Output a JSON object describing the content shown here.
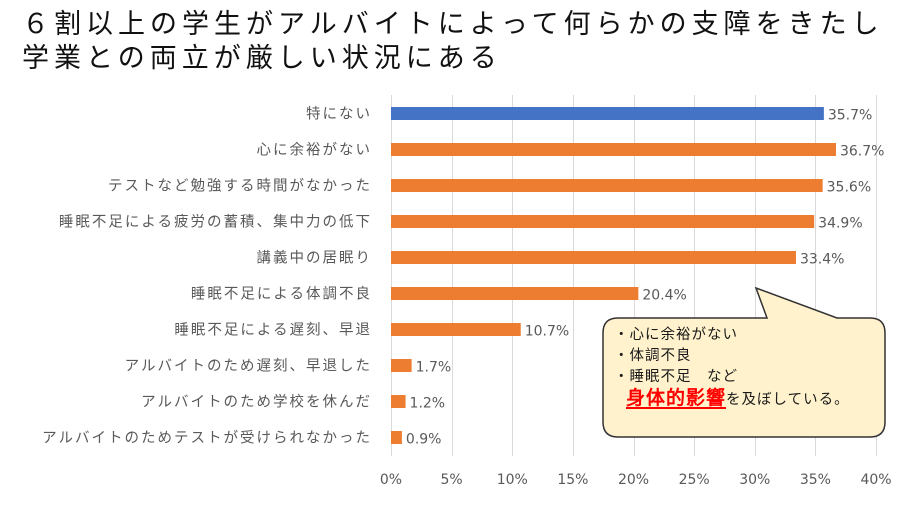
{
  "title": {
    "line1": "６割以上の学生がアルバイトによって何らかの支障をきたし",
    "line2": "学業との両立が厳しい状況にある"
  },
  "chart_data": {
    "type": "bar",
    "orientation": "horizontal",
    "title": "６割以上の学生がアルバイトによって何らかの支障をきたし学業との両立が厳しい状況にある",
    "xlabel": "",
    "ylabel": "",
    "xlim": [
      0,
      40
    ],
    "x_ticks": [
      0,
      5,
      10,
      15,
      20,
      25,
      30,
      35,
      40
    ],
    "x_tick_labels": [
      "0%",
      "5%",
      "10%",
      "15%",
      "20%",
      "25%",
      "30%",
      "35%",
      "40%"
    ],
    "grid": "vertical",
    "categories": [
      "特にない",
      "心に余裕がない",
      "テストなど勉強する時間がなかった",
      "睡眠不足による疲労の蓄積、集中力の低下",
      "講義中の居眠り",
      "睡眠不足による体調不良",
      "睡眠不足による遅刻、早退",
      "アルバイトのため遅刻、早退した",
      "アルバイトのため学校を休んだ",
      "アルバイトのためテストが受けられなかった"
    ],
    "values": [
      35.7,
      36.7,
      35.6,
      34.9,
      33.4,
      20.4,
      10.7,
      1.7,
      1.2,
      0.9
    ],
    "value_labels": [
      "35.7%",
      "36.7%",
      "35.6%",
      "34.9%",
      "33.4%",
      "20.4%",
      "10.7%",
      "1.7%",
      "1.2%",
      "0.9%"
    ],
    "bar_colors": [
      "#4472c4",
      "#ed7d31",
      "#ed7d31",
      "#ed7d31",
      "#ed7d31",
      "#ed7d31",
      "#ed7d31",
      "#ed7d31",
      "#ed7d31",
      "#ed7d31"
    ]
  },
  "callout": {
    "items": [
      "・心に余裕がない",
      "・体調不良",
      "・睡眠不足　など"
    ],
    "emphasis": "身体的影響",
    "suffix": "を及ぼしている。",
    "fill": "#fff2cc",
    "emphasis_color": "#ff0000"
  },
  "colors": {
    "grid": "#d9d9d9",
    "text": "#595959"
  }
}
